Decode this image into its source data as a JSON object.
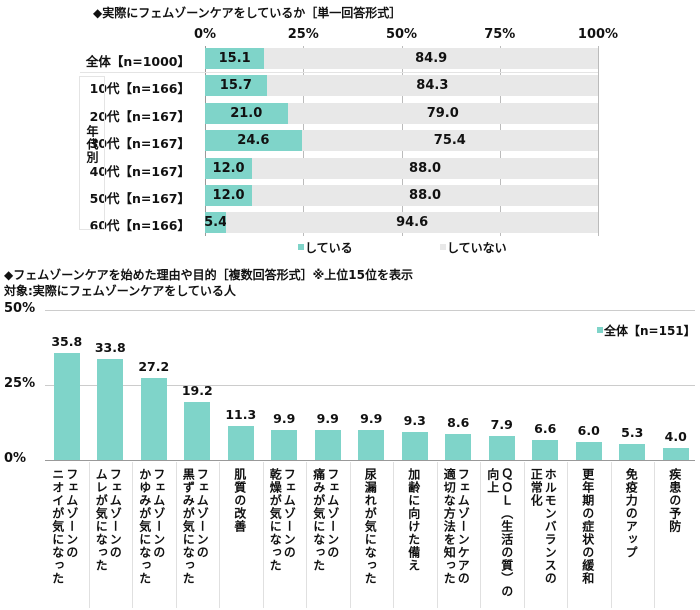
{
  "chart_data": [
    {
      "type": "bar",
      "orientation": "horizontal",
      "stacked": true,
      "title": "◆実際にフェムゾーンケアをしているか［単一回答形式］",
      "xlim": [
        0,
        100
      ],
      "ticks": [
        "0%",
        "25%",
        "50%",
        "75%",
        "100%"
      ],
      "group_label": "年代別",
      "categories": [
        "全体【n=1000】",
        "10代【n=166】",
        "20代【n=167】",
        "30代【n=167】",
        "40代【n=167】",
        "50代【n=167】",
        "60代【n=166】"
      ],
      "series": [
        {
          "name": "している",
          "color": "#7fd4c9",
          "values": [
            15.1,
            15.7,
            21.0,
            24.6,
            12.0,
            12.0,
            5.4
          ]
        },
        {
          "name": "していない",
          "color": "#e8e8e8",
          "values": [
            84.9,
            84.3,
            79.0,
            75.4,
            88.0,
            88.0,
            94.6
          ]
        }
      ],
      "legend": "bottom"
    },
    {
      "type": "bar",
      "title": "◆フェムゾーンケアを始めた理由や目的［複数回答形式］※上位15位を表示",
      "subtitle": "対象:実際にフェムゾーンケアをしている人",
      "ylim": [
        0,
        50
      ],
      "ticks": [
        "0%",
        "25%",
        "50%"
      ],
      "legend": "top-right",
      "categories": [
        [
          "フェムゾーンの",
          "ニオイが気になった"
        ],
        [
          "フェムゾーンの",
          "ムレが気になった"
        ],
        [
          "フェムゾーンの",
          "かゆみが気になった"
        ],
        [
          "フェムゾーンの",
          "黒ずみが気になった"
        ],
        [
          "肌質の改善"
        ],
        [
          "フェムゾーンの",
          "乾燥が気になった"
        ],
        [
          "フェムゾーンの",
          "痛みが気になった"
        ],
        [
          "尿漏れが気になった"
        ],
        [
          "加齢に向けた備え"
        ],
        [
          "フェムゾーンケアの",
          "適切な方法を知った"
        ],
        [
          "ＱＯＬ（生活の質）の",
          "向上"
        ],
        [
          "ホルモンバランスの",
          "正常化"
        ],
        [
          "更年期の症状の緩和"
        ],
        [
          "免疫力のアップ"
        ],
        [
          "疾患の予防"
        ]
      ],
      "series": [
        {
          "name": "全体【n=151】",
          "color": "#7fd4c9",
          "values": [
            35.8,
            33.8,
            27.2,
            19.2,
            11.3,
            9.9,
            9.9,
            9.9,
            9.3,
            8.6,
            7.9,
            6.6,
            6.0,
            5.3,
            4.0
          ]
        }
      ]
    }
  ]
}
